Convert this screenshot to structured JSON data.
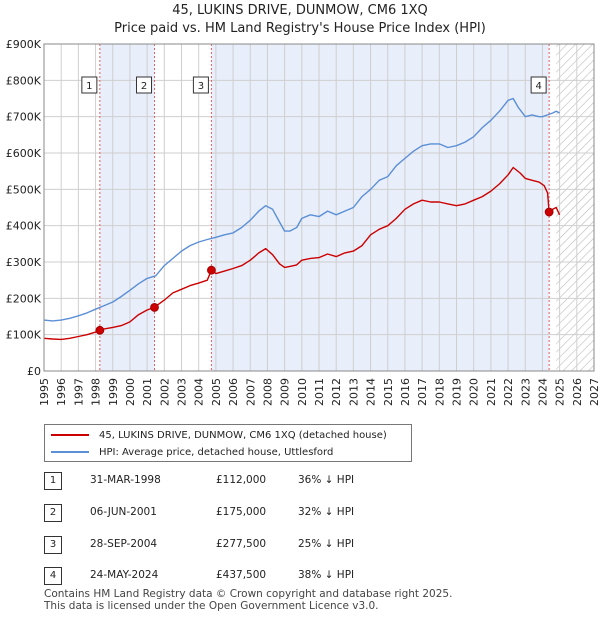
{
  "title_line1": "45, LUKINS DRIVE, DUNMOW, CM6 1XQ",
  "title_line2": "Price paid vs. HM Land Registry's House Price Index (HPI)",
  "colors": {
    "property": "#cc0000",
    "hpi": "#5b8fd6",
    "shade": "#e8eefa",
    "vline": "#e06060"
  },
  "chart_data": {
    "type": "line",
    "title": "45, LUKINS DRIVE, DUNMOW, CM6 1XQ — Price paid vs. HM Land Registry's House Price Index (HPI)",
    "xlim": [
      1995,
      2027
    ],
    "ylim": [
      0,
      900000
    ],
    "x_ticks": [
      "1995",
      "1996",
      "1997",
      "1998",
      "1999",
      "2000",
      "2001",
      "2002",
      "2003",
      "2004",
      "2005",
      "2006",
      "2007",
      "2008",
      "2009",
      "2010",
      "2011",
      "2012",
      "2013",
      "2014",
      "2015",
      "2016",
      "2017",
      "2018",
      "2019",
      "2020",
      "2021",
      "2022",
      "2023",
      "2024",
      "2025",
      "2026",
      "2027"
    ],
    "y_ticks": [
      {
        "value": 0,
        "label": "£0"
      },
      {
        "value": 100000,
        "label": "£100K"
      },
      {
        "value": 200000,
        "label": "£200K"
      },
      {
        "value": 300000,
        "label": "£300K"
      },
      {
        "value": 400000,
        "label": "£400K"
      },
      {
        "value": 500000,
        "label": "£500K"
      },
      {
        "value": 600000,
        "label": "£600K"
      },
      {
        "value": 700000,
        "label": "£700K"
      },
      {
        "value": 800000,
        "label": "£800K"
      },
      {
        "value": 900000,
        "label": "£900K"
      }
    ],
    "shaded_spans": [
      [
        1998.25,
        2001.43
      ],
      [
        2004.74,
        2024.39
      ]
    ],
    "forecast_from": 2024.8,
    "series": [
      {
        "name": "45, LUKINS DRIVE, DUNMOW, CM6 1XQ (detached house)",
        "color": "#cc0000",
        "x": [
          1995,
          1995.5,
          1996,
          1996.5,
          1997,
          1997.5,
          1998,
          1998.25,
          1998.5,
          1999,
          1999.5,
          2000,
          2000.5,
          2001,
          2001.43,
          2001.5,
          2002,
          2002.5,
          2003,
          2003.5,
          2004,
          2004.5,
          2004.74,
          2005,
          2005.5,
          2006,
          2006.5,
          2007,
          2007.5,
          2007.9,
          2008.3,
          2008.7,
          2009,
          2009.3,
          2009.7,
          2010,
          2010.5,
          2011,
          2011.5,
          2012,
          2012.5,
          2013,
          2013.5,
          2014,
          2014.5,
          2015,
          2015.5,
          2016,
          2016.5,
          2017,
          2017.5,
          2018,
          2018.5,
          2019,
          2019.5,
          2020,
          2020.5,
          2021,
          2021.5,
          2022,
          2022.3,
          2022.7,
          2023,
          2023.4,
          2023.8,
          2024.1,
          2024.3,
          2024.39,
          2024.6,
          2024.8,
          2025
        ],
        "y": [
          90000,
          88000,
          87000,
          90000,
          95000,
          100000,
          107000,
          112000,
          116000,
          120000,
          125000,
          135000,
          155000,
          168000,
          175000,
          178000,
          195000,
          215000,
          225000,
          235000,
          242000,
          250000,
          277500,
          268000,
          275000,
          282000,
          290000,
          305000,
          325000,
          337000,
          320000,
          295000,
          285000,
          288000,
          292000,
          305000,
          310000,
          312000,
          322000,
          315000,
          325000,
          330000,
          345000,
          375000,
          390000,
          400000,
          420000,
          445000,
          460000,
          470000,
          465000,
          465000,
          460000,
          455000,
          460000,
          470000,
          480000,
          495000,
          515000,
          540000,
          560000,
          545000,
          530000,
          525000,
          520000,
          510000,
          490000,
          437500,
          445000,
          450000,
          430000
        ]
      },
      {
        "name": "HPI: Average price, detached house, Uttlesford",
        "color": "#5b8fd6",
        "x": [
          1995,
          1995.5,
          1996,
          1996.5,
          1997,
          1997.5,
          1998,
          1998.5,
          1999,
          1999.5,
          2000,
          2000.5,
          2001,
          2001.5,
          2002,
          2002.5,
          2003,
          2003.5,
          2004,
          2004.5,
          2005,
          2005.5,
          2006,
          2006.5,
          2007,
          2007.5,
          2007.9,
          2008.3,
          2008.7,
          2009,
          2009.3,
          2009.7,
          2010,
          2010.5,
          2011,
          2011.5,
          2012,
          2012.5,
          2013,
          2013.5,
          2014,
          2014.5,
          2015,
          2015.5,
          2016,
          2016.5,
          2017,
          2017.5,
          2018,
          2018.5,
          2019,
          2019.5,
          2020,
          2020.5,
          2021,
          2021.5,
          2022,
          2022.3,
          2022.6,
          2023,
          2023.4,
          2023.8,
          2024,
          2024.3,
          2024.6,
          2024.8,
          2025
        ],
        "y": [
          140000,
          138000,
          140000,
          145000,
          152000,
          160000,
          170000,
          180000,
          190000,
          205000,
          222000,
          240000,
          255000,
          262000,
          290000,
          310000,
          330000,
          345000,
          355000,
          362000,
          368000,
          375000,
          380000,
          395000,
          415000,
          440000,
          455000,
          445000,
          410000,
          385000,
          385000,
          395000,
          420000,
          430000,
          425000,
          440000,
          430000,
          440000,
          450000,
          480000,
          500000,
          525000,
          535000,
          565000,
          585000,
          605000,
          620000,
          625000,
          625000,
          615000,
          620000,
          630000,
          645000,
          670000,
          690000,
          715000,
          745000,
          750000,
          725000,
          700000,
          705000,
          700000,
          700000,
          705000,
          710000,
          715000,
          710000
        ]
      }
    ],
    "sale_markers": [
      {
        "id": "1",
        "x": 1998.25,
        "y": 112000
      },
      {
        "id": "2",
        "x": 2001.43,
        "y": 175000
      },
      {
        "id": "3",
        "x": 2004.74,
        "y": 277500
      },
      {
        "id": "4",
        "x": 2024.39,
        "y": 437500
      }
    ]
  },
  "legend": {
    "property_label": "45, LUKINS DRIVE, DUNMOW, CM6 1XQ (detached house)",
    "hpi_label": "HPI: Average price, detached house, Uttlesford"
  },
  "sales": [
    {
      "id": "1",
      "date": "31-MAR-1998",
      "price": "£112,000",
      "hpi": "36% ↓ HPI"
    },
    {
      "id": "2",
      "date": "06-JUN-2001",
      "price": "£175,000",
      "hpi": "32% ↓ HPI"
    },
    {
      "id": "3",
      "date": "28-SEP-2004",
      "price": "£277,500",
      "hpi": "25% ↓ HPI"
    },
    {
      "id": "4",
      "date": "24-MAY-2024",
      "price": "£437,500",
      "hpi": "38% ↓ HPI"
    }
  ],
  "footer": {
    "line1": "Contains HM Land Registry data © Crown copyright and database right 2025.",
    "line2": "This data is licensed under the Open Government Licence v3.0."
  }
}
